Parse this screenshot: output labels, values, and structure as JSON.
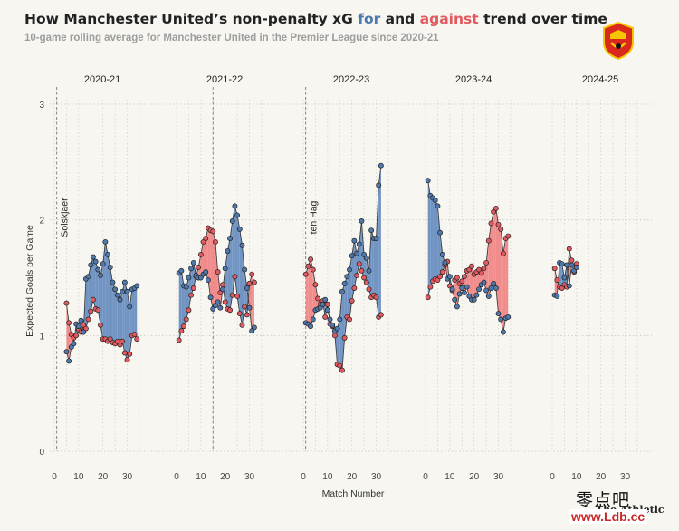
{
  "header": {
    "title_pre": "How Manchester United’s non-penalty xG ",
    "title_for": "for",
    "title_mid": " and ",
    "title_against": "against",
    "title_post": " trend over time",
    "subtitle": "10-game rolling average for Manchester United in the Premier League since 2020-21"
  },
  "watermark": {
    "publisher": "The Athletic",
    "cn": "零点吧",
    "url": "www.Ldb.cc"
  },
  "colors": {
    "for": "#4f79ad",
    "against": "#e25a5f",
    "for_fill": "#7194c3",
    "against_fill": "#f08d8c",
    "background": "#f7f6f1"
  },
  "chart_data": {
    "type": "line",
    "xlabel": "Match Number",
    "ylabel": "Expected Goals per Game",
    "ylim": [
      0,
      3
    ],
    "yticks": [
      0,
      1,
      2,
      3
    ],
    "xlim": [
      0,
      38
    ],
    "xticks": [
      0,
      10,
      20,
      30
    ],
    "grid": true,
    "seasons": [
      {
        "name": "2020-21",
        "manager_change": {
          "label": "Solskjaer",
          "x": 1
        },
        "start_match": 5,
        "xg_for": [
          0.86,
          0.78,
          0.9,
          0.93,
          1.1,
          1.08,
          1.13,
          1.03,
          1.49,
          1.51,
          1.61,
          1.68,
          1.64,
          1.57,
          1.52,
          1.62,
          1.81,
          1.7,
          1.59,
          1.46,
          1.4,
          1.35,
          1.31,
          1.38,
          1.46,
          1.38,
          1.25,
          1.4,
          1.41,
          1.43
        ],
        "xg_against": [
          1.28,
          1.11,
          1.01,
          0.98,
          1.0,
          1.05,
          1.03,
          1.09,
          1.06,
          1.14,
          1.21,
          1.31,
          1.23,
          1.22,
          1.09,
          0.97,
          0.97,
          0.95,
          0.97,
          0.94,
          0.93,
          0.95,
          0.92,
          0.95,
          0.85,
          0.79,
          0.84,
          1.0,
          1.01,
          0.97
        ]
      },
      {
        "name": "2021-22",
        "manager_change": {
          "x": 15
        },
        "start_match": 1,
        "xg_for": [
          1.54,
          1.56,
          1.43,
          1.42,
          1.5,
          1.58,
          1.63,
          1.52,
          1.5,
          1.5,
          1.53,
          1.55,
          1.48,
          1.33,
          1.23,
          1.26,
          1.29,
          1.24,
          1.4,
          1.58,
          1.73,
          1.84,
          1.99,
          2.12,
          2.04,
          1.92,
          1.78,
          1.57,
          1.41,
          1.24,
          1.04,
          1.07
        ],
        "xg_against": [
          0.96,
          1.04,
          1.08,
          1.14,
          1.22,
          1.35,
          1.41,
          1.51,
          1.59,
          1.7,
          1.81,
          1.84,
          1.93,
          1.91,
          1.9,
          1.81,
          1.55,
          1.37,
          1.44,
          1.29,
          1.23,
          1.22,
          1.35,
          1.51,
          1.34,
          1.19,
          1.09,
          1.25,
          1.18,
          1.45,
          1.53,
          1.46
        ]
      },
      {
        "name": "2022-23",
        "manager_change": {
          "label": "ten Hag",
          "x": 1
        },
        "start_match": 1,
        "xg_for": [
          1.11,
          1.1,
          1.08,
          1.14,
          1.22,
          1.23,
          1.24,
          1.27,
          1.31,
          1.22,
          1.14,
          1.09,
          1.04,
          1.06,
          1.14,
          1.38,
          1.45,
          1.51,
          1.57,
          1.69,
          1.82,
          1.71,
          1.79,
          1.99,
          1.7,
          1.67,
          1.56,
          1.91,
          1.84,
          1.84,
          2.3,
          2.47
        ],
        "xg_against": [
          1.53,
          1.6,
          1.66,
          1.57,
          1.44,
          1.32,
          1.27,
          1.3,
          1.16,
          1.27,
          1.1,
          1.08,
          1.0,
          0.75,
          0.74,
          0.7,
          0.98,
          1.16,
          1.14,
          1.3,
          1.41,
          1.52,
          1.62,
          1.56,
          1.5,
          1.46,
          1.4,
          1.33,
          1.35,
          1.33,
          1.16,
          1.18
        ]
      },
      {
        "name": "2023-24",
        "start_match": 1,
        "xg_for": [
          2.34,
          2.21,
          2.19,
          2.17,
          2.12,
          1.89,
          1.7,
          1.63,
          1.49,
          1.51,
          1.4,
          1.31,
          1.25,
          1.36,
          1.41,
          1.37,
          1.42,
          1.34,
          1.31,
          1.31,
          1.35,
          1.4,
          1.44,
          1.46,
          1.39,
          1.34,
          1.41,
          1.45,
          1.41,
          1.19,
          1.14,
          1.03,
          1.15,
          1.16
        ],
        "xg_against": [
          1.33,
          1.42,
          1.47,
          1.49,
          1.48,
          1.51,
          1.55,
          1.61,
          1.64,
          1.43,
          1.39,
          1.48,
          1.5,
          1.45,
          1.47,
          1.51,
          1.56,
          1.57,
          1.6,
          1.53,
          1.55,
          1.57,
          1.54,
          1.58,
          1.63,
          1.82,
          1.97,
          2.07,
          2.1,
          1.96,
          1.92,
          1.71,
          1.84,
          1.86
        ]
      },
      {
        "name": "2024-25",
        "start_match": 1,
        "xg_for": [
          1.35,
          1.34,
          1.63,
          1.62,
          1.5,
          1.61,
          1.43,
          1.61,
          1.56,
          1.59
        ],
        "xg_against": [
          1.58,
          1.48,
          1.42,
          1.41,
          1.44,
          1.42,
          1.75,
          1.65,
          1.55,
          1.62
        ]
      }
    ]
  }
}
